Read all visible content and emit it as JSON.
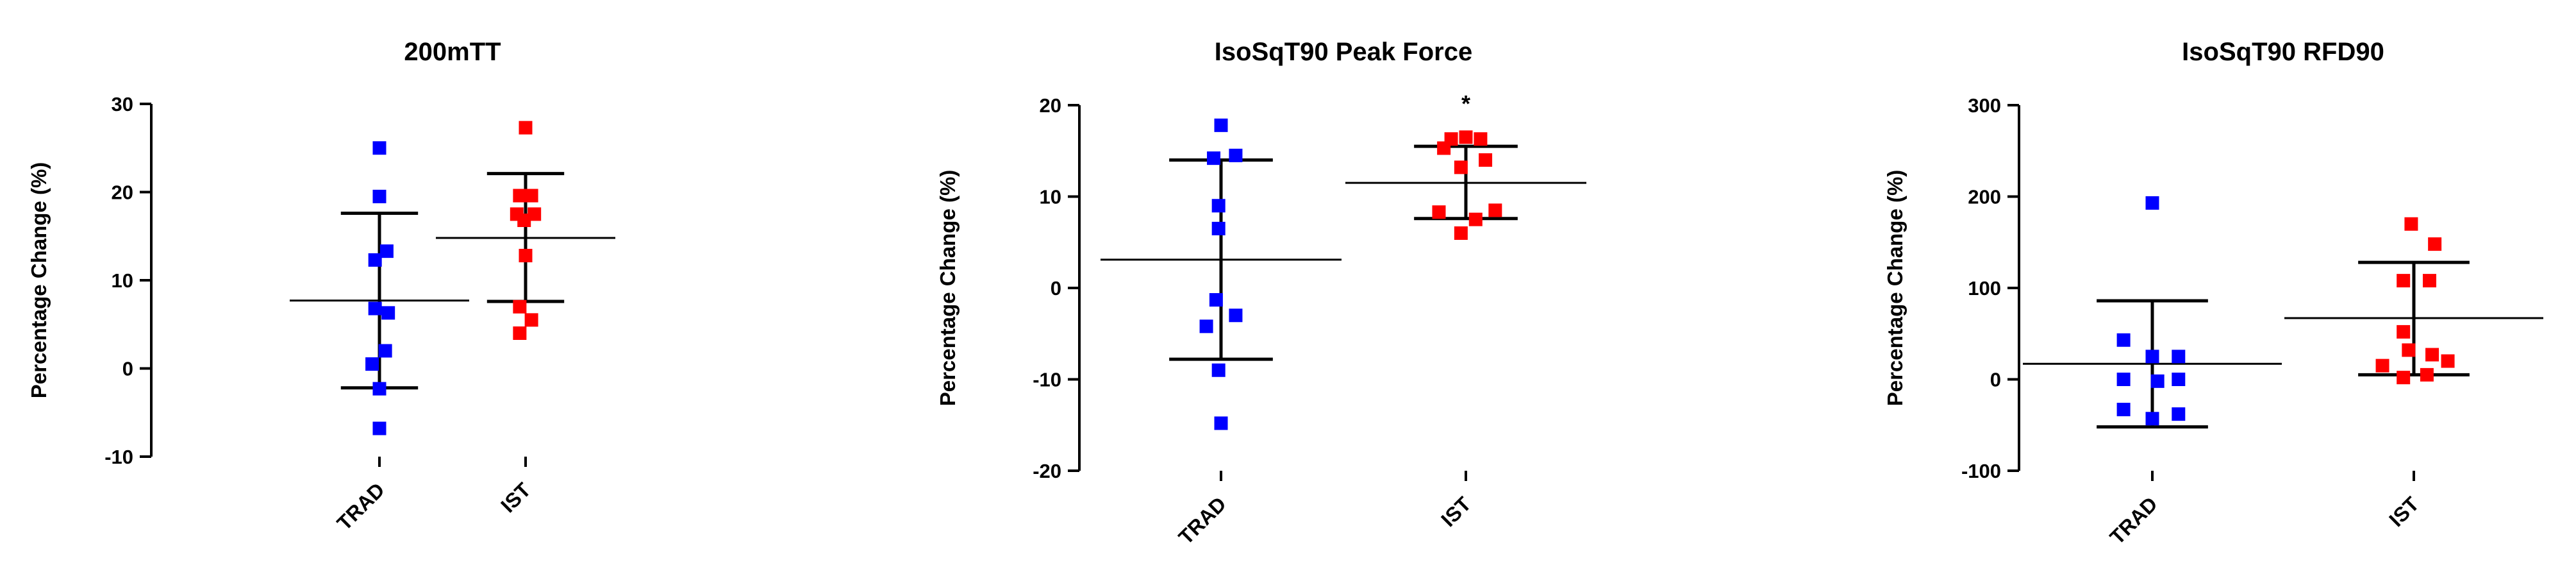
{
  "chart_data": [
    {
      "type": "scatter",
      "title": "200mTT",
      "xlabel": "",
      "ylabel": "Percentage Change (%)",
      "categories": [
        "TRAD",
        "IST"
      ],
      "ylim": [
        -10,
        30
      ],
      "yticks": [
        -10,
        0,
        10,
        20,
        30
      ],
      "grid": false,
      "annotation": "",
      "series": [
        {
          "category": "TRAD",
          "color": "#0000ff",
          "marker": "square",
          "points": [
            {
              "dx": 0.0,
              "y": 25.0
            },
            {
              "dx": 0.0,
              "y": 19.5
            },
            {
              "dx": 0.05,
              "y": 13.3
            },
            {
              "dx": -0.03,
              "y": 12.3
            },
            {
              "dx": -0.03,
              "y": 6.8
            },
            {
              "dx": 0.06,
              "y": 6.3
            },
            {
              "dx": 0.04,
              "y": 2.0
            },
            {
              "dx": -0.05,
              "y": 0.5
            },
            {
              "dx": 0.0,
              "y": -2.3
            },
            {
              "dx": 0.0,
              "y": -6.8
            }
          ],
          "mean": 7.7,
          "sd_upper": 17.6,
          "sd_lower": -2.2
        },
        {
          "category": "IST",
          "color": "#ff0000",
          "marker": "square",
          "points": [
            {
              "dx": 0.0,
              "y": 27.3
            },
            {
              "dx": -0.04,
              "y": 19.6
            },
            {
              "dx": 0.04,
              "y": 19.6
            },
            {
              "dx": -0.06,
              "y": 17.5
            },
            {
              "dx": 0.06,
              "y": 17.5
            },
            {
              "dx": -0.01,
              "y": 16.8
            },
            {
              "dx": 0.0,
              "y": 12.8
            },
            {
              "dx": -0.04,
              "y": 7.0
            },
            {
              "dx": 0.04,
              "y": 5.5
            },
            {
              "dx": -0.04,
              "y": 4.0
            }
          ],
          "mean": 14.8,
          "sd_upper": 22.1,
          "sd_lower": 7.6
        }
      ]
    },
    {
      "type": "scatter",
      "title": "IsoSqT90 Peak Force",
      "xlabel": "",
      "ylabel": "Percentage Change (%)",
      "categories": [
        "TRAD",
        "IST"
      ],
      "ylim": [
        -20,
        20
      ],
      "yticks": [
        -20,
        -10,
        0,
        10,
        20
      ],
      "grid": false,
      "annotation": "*",
      "series": [
        {
          "category": "TRAD",
          "color": "#0000ff",
          "marker": "square",
          "points": [
            {
              "dx": 0.0,
              "y": 17.8
            },
            {
              "dx": 0.06,
              "y": 14.5
            },
            {
              "dx": -0.03,
              "y": 14.2
            },
            {
              "dx": -0.01,
              "y": 9.0
            },
            {
              "dx": -0.01,
              "y": 6.5
            },
            {
              "dx": -0.02,
              "y": -1.3
            },
            {
              "dx": 0.06,
              "y": -3.0
            },
            {
              "dx": -0.06,
              "y": -4.2
            },
            {
              "dx": -0.01,
              "y": -9.0
            },
            {
              "dx": 0.0,
              "y": -14.8
            }
          ],
          "mean": 3.1,
          "sd_upper": 14.0,
          "sd_lower": -7.8
        },
        {
          "category": "IST",
          "color": "#ff0000",
          "marker": "square",
          "points": [
            {
              "dx": -0.06,
              "y": 16.3
            },
            {
              "dx": 0.0,
              "y": 16.5
            },
            {
              "dx": 0.06,
              "y": 16.3
            },
            {
              "dx": -0.09,
              "y": 15.3
            },
            {
              "dx": 0.08,
              "y": 14.0
            },
            {
              "dx": -0.02,
              "y": 13.2
            },
            {
              "dx": -0.11,
              "y": 8.3
            },
            {
              "dx": 0.12,
              "y": 8.5
            },
            {
              "dx": 0.04,
              "y": 7.5
            },
            {
              "dx": -0.02,
              "y": 6.0
            }
          ],
          "mean": 11.5,
          "sd_upper": 15.5,
          "sd_lower": 7.6
        }
      ]
    },
    {
      "type": "scatter",
      "title": "IsoSqT90 RFD90",
      "xlabel": "",
      "ylabel": "Percentage Change (%)",
      "categories": [
        "TRAD",
        "IST"
      ],
      "ylim": [
        -100,
        300
      ],
      "yticks": [
        -100,
        0,
        100,
        200,
        300
      ],
      "grid": false,
      "annotation": "",
      "series": [
        {
          "category": "TRAD",
          "color": "#0000ff",
          "marker": "square",
          "points": [
            {
              "dx": 0.0,
              "y": 193
            },
            {
              "dx": -0.11,
              "y": 43
            },
            {
              "dx": 0.0,
              "y": 25
            },
            {
              "dx": 0.1,
              "y": 25
            },
            {
              "dx": -0.11,
              "y": 0
            },
            {
              "dx": 0.02,
              "y": -2
            },
            {
              "dx": 0.1,
              "y": 0
            },
            {
              "dx": -0.11,
              "y": -33
            },
            {
              "dx": 0.1,
              "y": -38
            },
            {
              "dx": 0.0,
              "y": -43
            }
          ],
          "mean": 17,
          "sd_upper": 86,
          "sd_lower": -52
        },
        {
          "category": "IST",
          "color": "#ff0000",
          "marker": "square",
          "points": [
            {
              "dx": -0.01,
              "y": 170
            },
            {
              "dx": 0.08,
              "y": 148
            },
            {
              "dx": -0.04,
              "y": 108
            },
            {
              "dx": 0.06,
              "y": 108
            },
            {
              "dx": -0.04,
              "y": 52
            },
            {
              "dx": -0.02,
              "y": 32
            },
            {
              "dx": 0.07,
              "y": 27
            },
            {
              "dx": 0.13,
              "y": 20
            },
            {
              "dx": -0.12,
              "y": 15
            },
            {
              "dx": -0.04,
              "y": 2
            },
            {
              "dx": 0.05,
              "y": 5
            }
          ],
          "mean": 67,
          "sd_upper": 128,
          "sd_lower": 5
        }
      ]
    }
  ]
}
